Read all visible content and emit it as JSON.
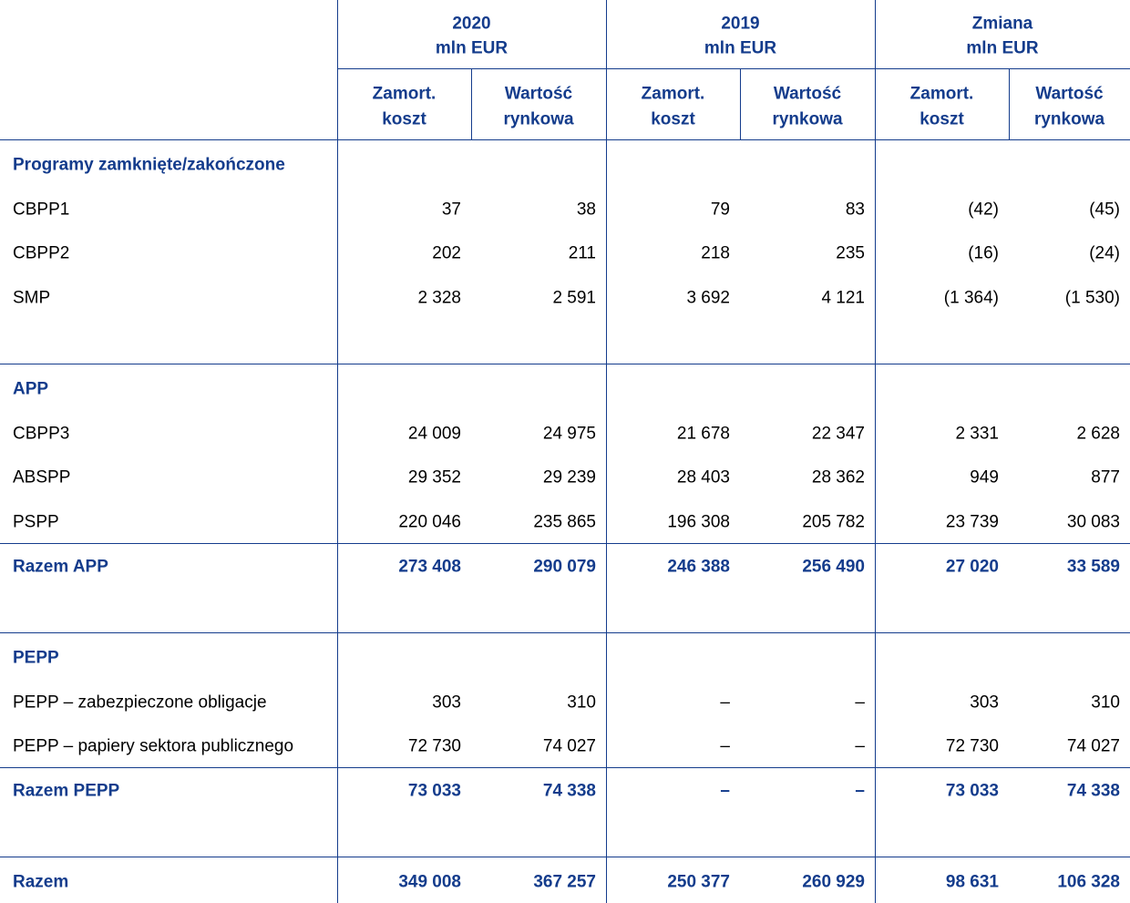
{
  "table": {
    "groups": [
      {
        "title": "2020",
        "unit": "mln EUR"
      },
      {
        "title": "2019",
        "unit": "mln EUR"
      },
      {
        "title": "Zmiana",
        "unit": "mln EUR"
      }
    ],
    "subheaders": [
      [
        "Zamort.",
        "koszt"
      ],
      [
        "Wartość",
        "rynkowa"
      ],
      [
        "Zamort.",
        "koszt"
      ],
      [
        "Wartość",
        "rynkowa"
      ],
      [
        "Zamort.",
        "koszt"
      ],
      [
        "Wartość",
        "rynkowa"
      ]
    ],
    "sections": [
      {
        "title": "Programy zamknięte/zakończone",
        "rows": [
          {
            "label": "CBPP1",
            "cells": [
              "37",
              "38",
              "79",
              "83",
              "(42)",
              "(45)"
            ]
          },
          {
            "label": "CBPP2",
            "cells": [
              "202",
              "211",
              "218",
              "235",
              "(16)",
              "(24)"
            ]
          },
          {
            "label": "SMP",
            "cells": [
              "2 328",
              "2 591",
              "3 692",
              "4 121",
              "(1 364)",
              "(1 530)"
            ]
          }
        ]
      },
      {
        "title": "APP",
        "rows": [
          {
            "label": "CBPP3",
            "cells": [
              "24 009",
              "24 975",
              "21 678",
              "22 347",
              "2 331",
              "2 628"
            ]
          },
          {
            "label": "ABSPP",
            "cells": [
              "29 352",
              "29 239",
              "28 403",
              "28 362",
              "949",
              "877"
            ]
          },
          {
            "label": "PSPP",
            "cells": [
              "220 046",
              "235 865",
              "196 308",
              "205 782",
              "23 739",
              "30 083"
            ]
          }
        ],
        "total": {
          "label": "Razem APP",
          "cells": [
            "273 408",
            "290 079",
            "246 388",
            "256 490",
            "27 020",
            "33 589"
          ]
        }
      },
      {
        "title": "PEPP",
        "rows": [
          {
            "label": "PEPP – zabezpieczone obligacje",
            "cells": [
              "303",
              "310",
              "–",
              "–",
              "303",
              "310"
            ]
          },
          {
            "label": "PEPP – papiery sektora publicznego",
            "cells": [
              "72 730",
              "74 027",
              "–",
              "–",
              "72 730",
              "74 027"
            ]
          }
        ],
        "total": {
          "label": "Razem PEPP",
          "cells": [
            "73 033",
            "74 338",
            "–",
            "–",
            "73 033",
            "74 338"
          ]
        }
      }
    ],
    "total": {
      "label": "Razem",
      "cells": [
        "349 008",
        "367 257",
        "250 377",
        "260 929",
        "98 631",
        "106 328"
      ]
    }
  }
}
